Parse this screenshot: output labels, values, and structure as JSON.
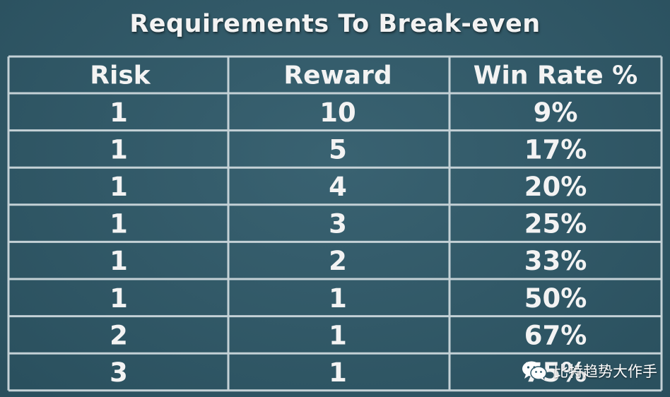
{
  "chart_data": {
    "type": "table",
    "title": "Requirements To Break-even",
    "columns": [
      "Risk",
      "Reward",
      "Win Rate %"
    ],
    "rows": [
      [
        "1",
        "10",
        "9%"
      ],
      [
        "1",
        "5",
        "17%"
      ],
      [
        "1",
        "4",
        "20%"
      ],
      [
        "1",
        "3",
        "25%"
      ],
      [
        "1",
        "2",
        "33%"
      ],
      [
        "1",
        "1",
        "50%"
      ],
      [
        "2",
        "1",
        "67%"
      ],
      [
        "3",
        "1",
        "75%"
      ]
    ]
  },
  "watermark": {
    "text": "比特趋势大作手",
    "icon": "wechat-icon"
  },
  "colors": {
    "background": "#2f5a6a",
    "grid_line": "#c4d1d6",
    "text": "#f3f3f3"
  }
}
